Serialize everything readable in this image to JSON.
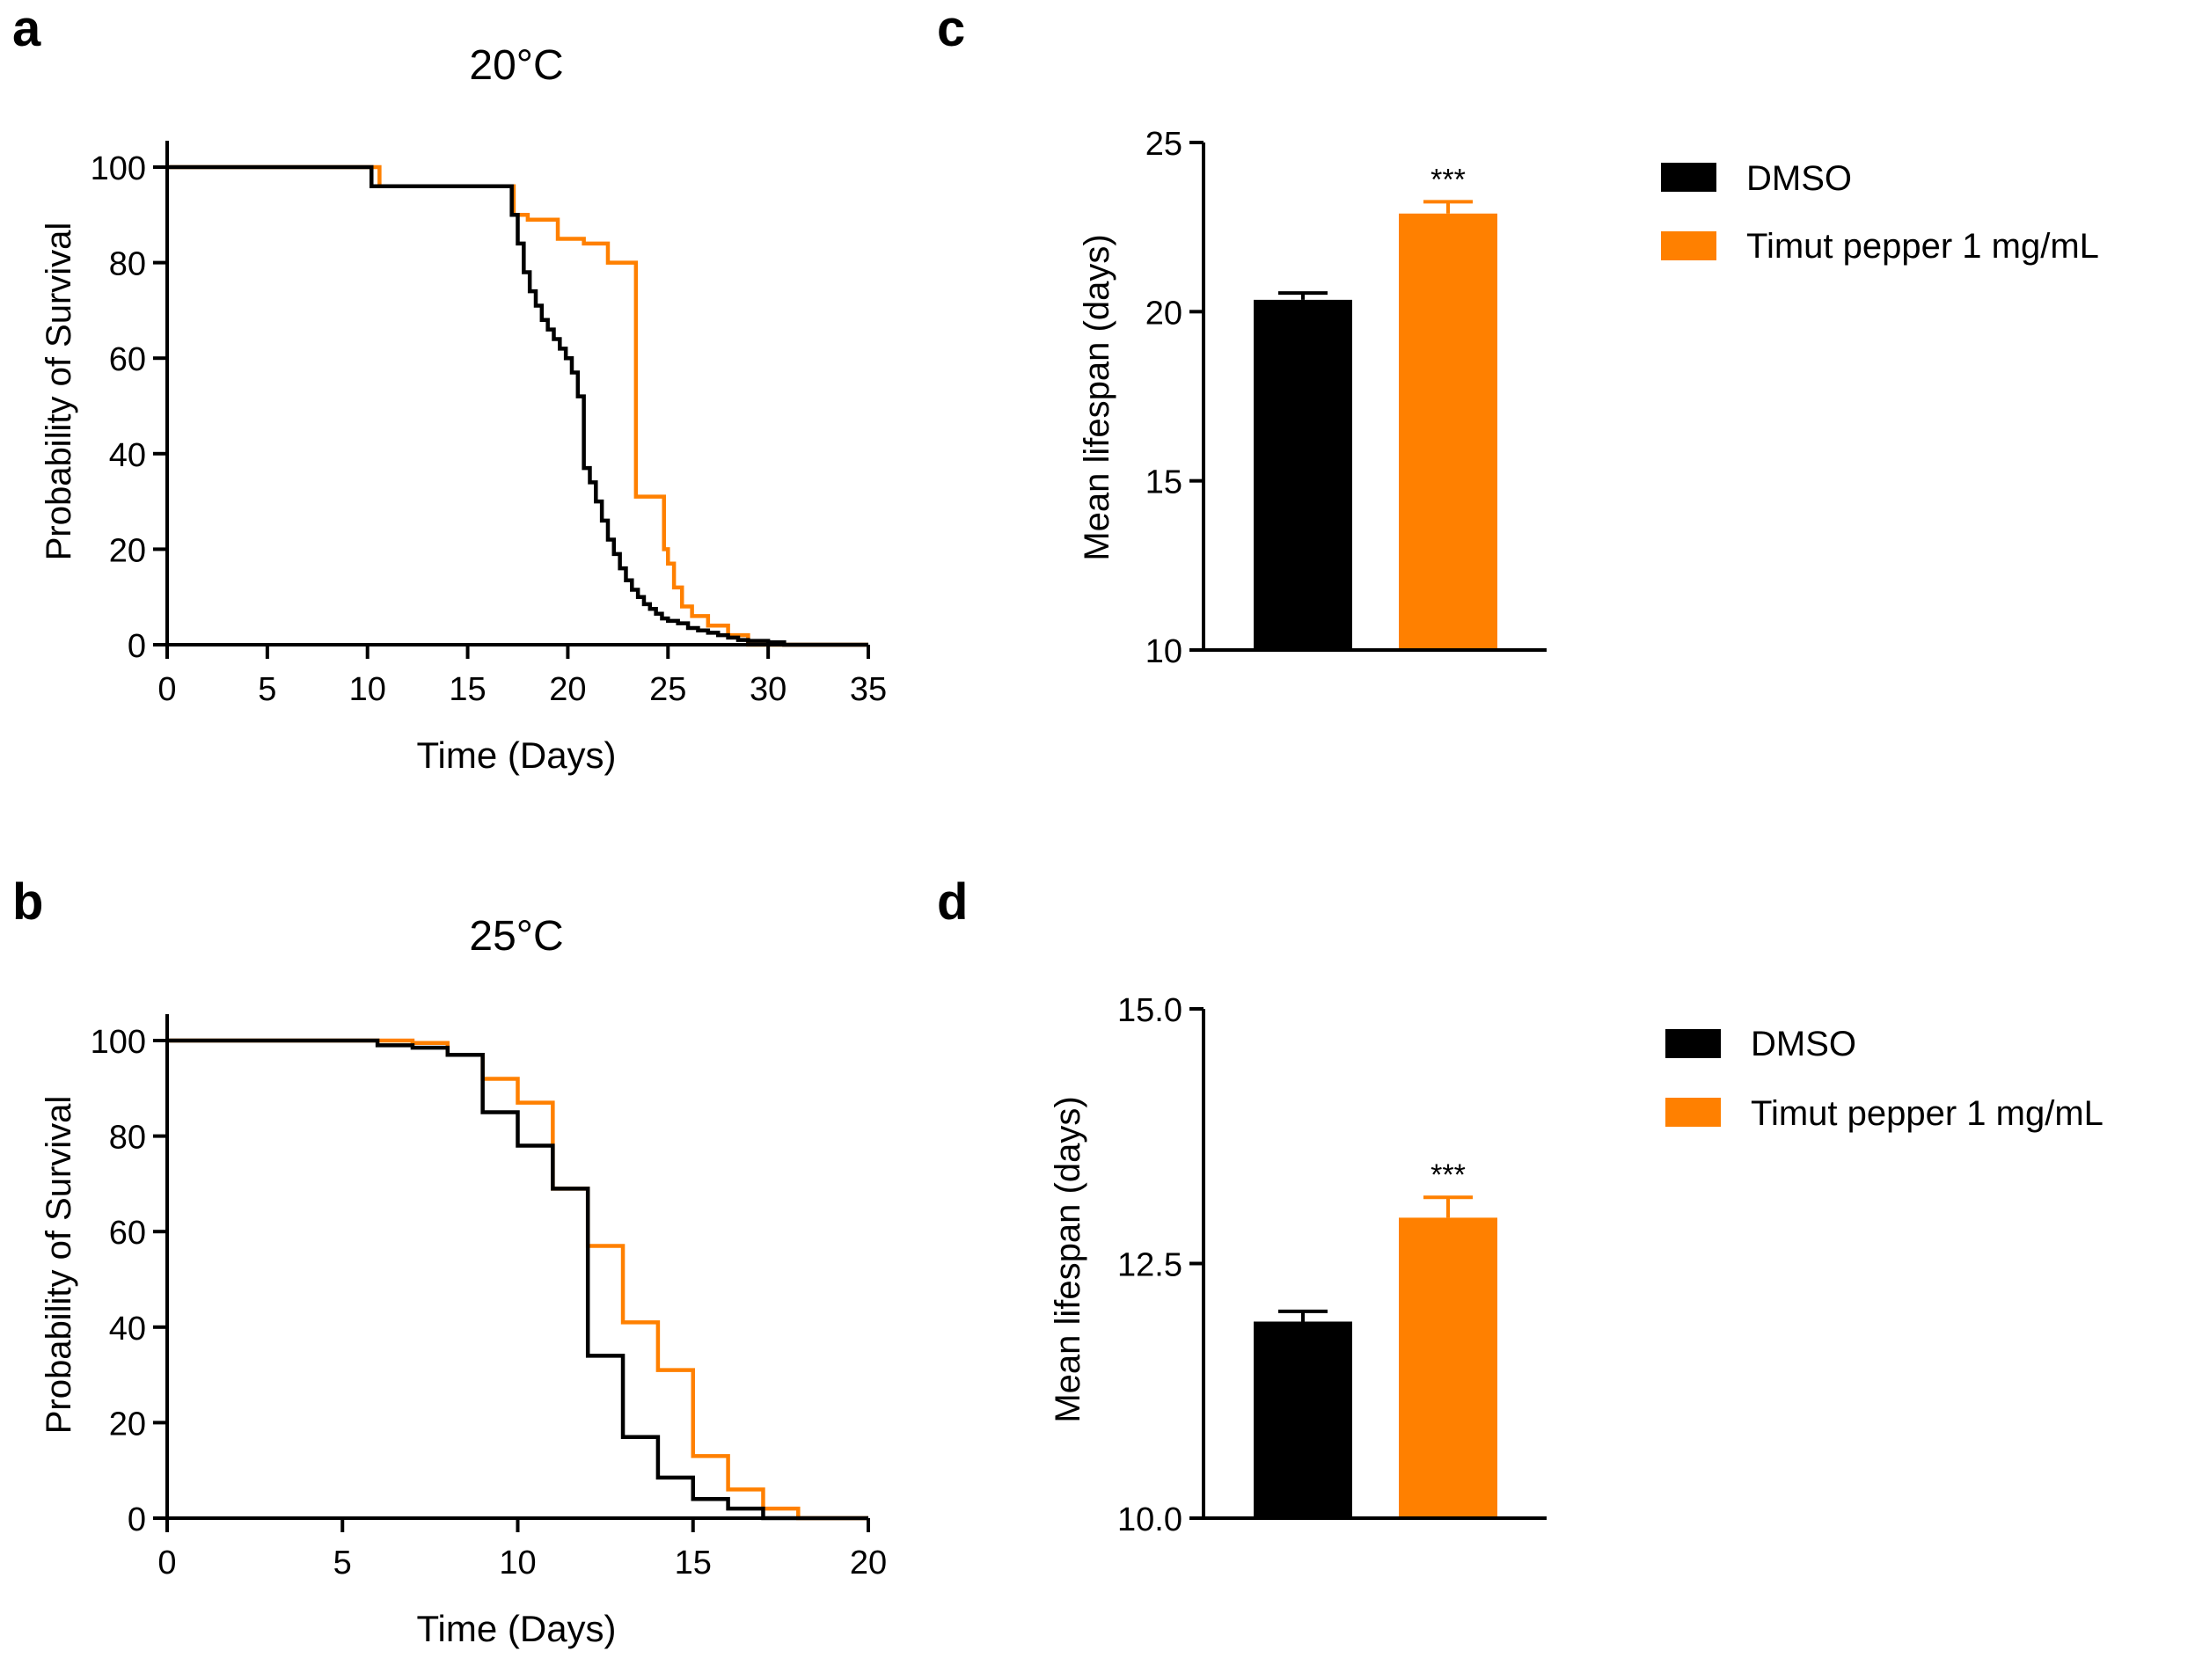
{
  "figure": {
    "panel_labels": [
      "a",
      "b",
      "c",
      "d"
    ],
    "colors": {
      "dmso": "#000000",
      "timut": "#ff8000",
      "axis": "#000000"
    }
  },
  "chart_data": [
    {
      "id": "a",
      "type": "line",
      "step": true,
      "title": "20°C",
      "xlabel": "Time (Days)",
      "ylabel": "Probability of Survival",
      "xlim": [
        0,
        35
      ],
      "ylim": [
        0,
        100
      ],
      "xticks": [
        "0",
        "5",
        "10",
        "15",
        "20",
        "25",
        "30",
        "35"
      ],
      "yticks": [
        "0",
        "20",
        "40",
        "60",
        "80",
        "100"
      ],
      "series": [
        {
          "name": "DMSO",
          "color": "#000000",
          "x": [
            0,
            10.2,
            17.2,
            17.5,
            17.8,
            18.1,
            18.4,
            18.7,
            19,
            19.3,
            19.6,
            19.9,
            20.2,
            20.5,
            20.8,
            21.1,
            21.4,
            21.7,
            22,
            22.3,
            22.6,
            22.9,
            23.2,
            23.5,
            23.8,
            24.1,
            24.4,
            24.7,
            25,
            25.5,
            26,
            26.5,
            27,
            27.5,
            28,
            28.5,
            29,
            30,
            30.8,
            35
          ],
          "y": [
            100,
            96,
            90,
            84,
            78,
            74,
            71,
            68,
            66,
            64,
            62,
            60,
            57,
            52,
            37,
            34,
            30,
            26,
            22,
            19,
            16,
            13.5,
            11.5,
            10,
            8.5,
            7.5,
            6.5,
            5.5,
            5,
            4.5,
            3.5,
            3,
            2.5,
            2,
            1.5,
            1,
            0.8,
            0.5,
            0,
            0
          ]
        },
        {
          "name": "Timut pepper 1 mg/mL",
          "color": "#ff8000",
          "x": [
            0,
            10.6,
            17.3,
            18,
            19.5,
            20.8,
            22,
            23.4,
            24.8,
            25,
            25.3,
            25.7,
            26.2,
            27,
            28,
            29,
            35
          ],
          "y": [
            100,
            96,
            90,
            89,
            85,
            84,
            80,
            31,
            20,
            17,
            12,
            8,
            6,
            4,
            2,
            0,
            0
          ]
        }
      ]
    },
    {
      "id": "b",
      "type": "line",
      "step": true,
      "title": "25°C",
      "xlabel": "Time (Days)",
      "ylabel": "Probability of Survival",
      "xlim": [
        0,
        20
      ],
      "ylim": [
        0,
        100
      ],
      "xticks": [
        "0",
        "5",
        "10",
        "15",
        "20"
      ],
      "yticks": [
        "0",
        "20",
        "40",
        "60",
        "80",
        "100"
      ],
      "series": [
        {
          "name": "DMSO",
          "color": "#000000",
          "x": [
            0,
            6,
            7,
            8,
            9,
            10,
            11,
            12,
            13,
            14,
            15,
            16,
            17,
            20
          ],
          "y": [
            100,
            99,
            98.5,
            97,
            85,
            78,
            69,
            34,
            17,
            8.5,
            4,
            2,
            0,
            0
          ]
        },
        {
          "name": "Timut pepper 1 mg/mL",
          "color": "#ff8000",
          "x": [
            0,
            6,
            7,
            8,
            9,
            10,
            11,
            12,
            13,
            14,
            15,
            16,
            17,
            18,
            20
          ],
          "y": [
            100,
            100,
            99.5,
            97,
            92,
            87,
            69,
            57,
            41,
            31,
            13,
            6,
            2,
            0,
            0
          ]
        }
      ]
    },
    {
      "id": "c",
      "type": "bar",
      "title": "",
      "xlabel": "",
      "ylabel": "Mean lifespan (days)",
      "ylim": [
        10,
        25
      ],
      "yticks": [
        "10",
        "15",
        "20",
        "25"
      ],
      "categories": [
        "DMSO",
        "Timut pepper 1 mg/mL"
      ],
      "values": [
        20.35,
        22.9
      ],
      "errors": [
        0.2,
        0.35
      ],
      "colors": [
        "#000000",
        "#ff8000"
      ],
      "annotations": [
        "",
        "***"
      ],
      "legend": [
        "DMSO",
        "Timut pepper 1 mg/mL"
      ]
    },
    {
      "id": "d",
      "type": "bar",
      "title": "",
      "xlabel": "",
      "ylabel": "Mean lifespan (days)",
      "ylim": [
        10,
        15
      ],
      "yticks": [
        "10.0",
        "12.5",
        "15.0"
      ],
      "categories": [
        "DMSO",
        "Timut pepper 1 mg/mL"
      ],
      "values": [
        11.93,
        12.95
      ],
      "errors": [
        0.1,
        0.2
      ],
      "colors": [
        "#000000",
        "#ff8000"
      ],
      "annotations": [
        "",
        "***"
      ],
      "legend": [
        "DMSO",
        "Timut pepper 1 mg/mL"
      ]
    }
  ]
}
